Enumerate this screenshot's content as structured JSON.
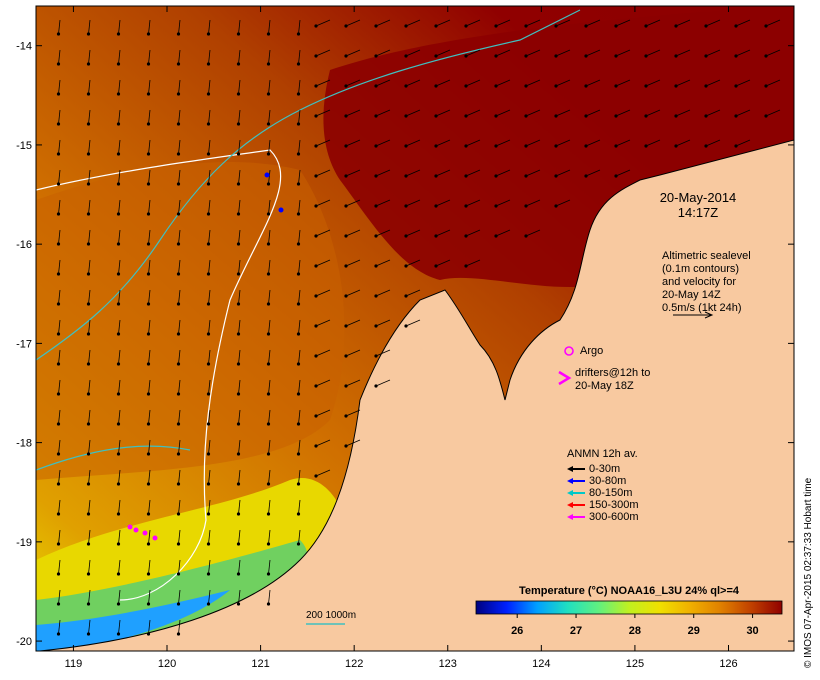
{
  "map": {
    "x_ticks": [
      "119",
      "120",
      "121",
      "122",
      "123",
      "124",
      "125",
      "126"
    ],
    "y_ticks": [
      "-14",
      "-15",
      "-16",
      "-17",
      "-18",
      "-19",
      "-20"
    ],
    "lon_range": [
      118.6,
      126.7
    ],
    "lat_range": [
      -20.1,
      -13.6
    ],
    "colors": {
      "land": "#f8c9a0",
      "sst_warm": "#8c0000",
      "sst_mid": "#d17a00",
      "sst_cool": "#e2e000",
      "coast": "#000000",
      "isobath_200": "#ffffff",
      "isobath_1000": "#40c0c0"
    }
  },
  "annotations": {
    "date": "20-May-2014",
    "time": "14:17Z",
    "sealevel_lines": [
      "Altimetric sealevel",
      "(0.1m contours)",
      "and velocity for",
      "20-May 14Z",
      "0.5m/s (1kt 24h)"
    ],
    "argo_label": "Argo",
    "drifters_lines": [
      "drifters@12h to",
      "20-May 18Z"
    ],
    "isobath_label": "200  1000m"
  },
  "legend": {
    "title": "ANMN 12h av.",
    "items": [
      {
        "label": "0-30m",
        "color": "#000000"
      },
      {
        "label": "30-80m",
        "color": "#0000ff"
      },
      {
        "label": "80-150m",
        "color": "#00c8c8"
      },
      {
        "label": "150-300m",
        "color": "#ff0000"
      },
      {
        "label": "300-600m",
        "color": "#ff00ff"
      }
    ]
  },
  "colorbar": {
    "title": "Temperature (°C) NOAA16_L3U 24% ql>=4",
    "ticks": [
      "26",
      "27",
      "28",
      "29",
      "30"
    ],
    "stops": [
      "#00007f",
      "#0020ff",
      "#00a0ff",
      "#20e0c0",
      "#60f080",
      "#c0f020",
      "#f0e000",
      "#f0b000",
      "#e08000",
      "#c04000",
      "#900000"
    ]
  },
  "credit": "© IMOS 07-Apr-2015 02:37:33 Hobart time"
}
